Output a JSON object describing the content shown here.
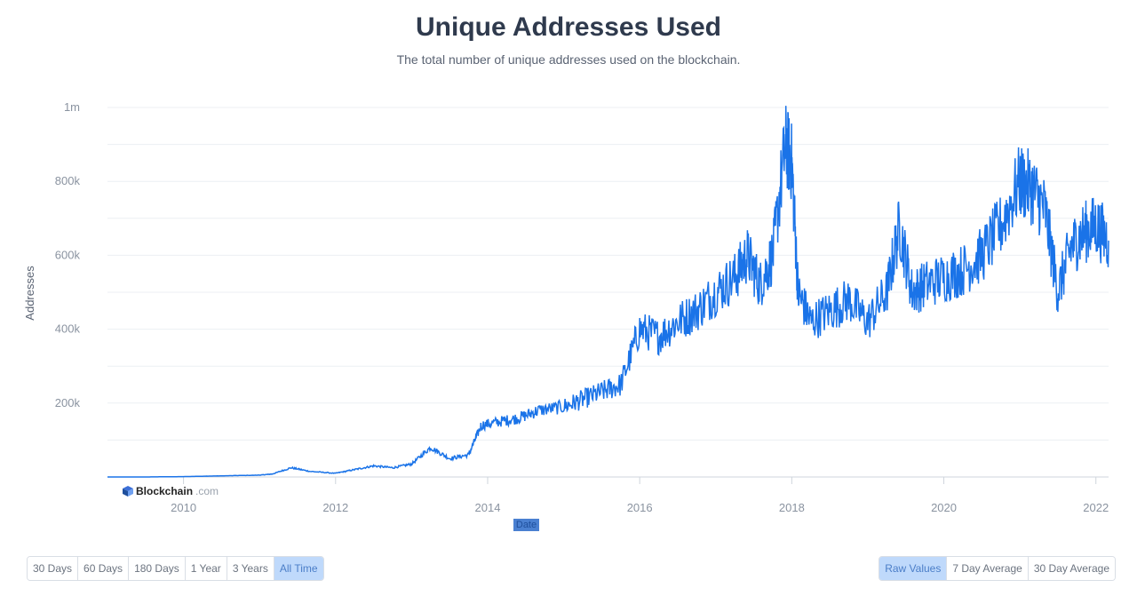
{
  "header": {
    "title": "Unique Addresses Used",
    "subtitle": "The total number of unique addresses used on the blockchain."
  },
  "brand": {
    "name": "Blockchain",
    "suffix": ".com"
  },
  "x_axis_title": "Date",
  "range_buttons": [
    {
      "label": "30 Days",
      "active": false
    },
    {
      "label": "60 Days",
      "active": false
    },
    {
      "label": "180 Days",
      "active": false
    },
    {
      "label": "1 Year",
      "active": false
    },
    {
      "label": "3 Years",
      "active": false
    },
    {
      "label": "All Time",
      "active": true
    }
  ],
  "mode_buttons": [
    {
      "label": "Raw Values",
      "active": true
    },
    {
      "label": "7 Day Average",
      "active": false
    },
    {
      "label": "30 Day Average",
      "active": false
    }
  ],
  "colors": {
    "line": "#1a73e8",
    "grid": "#eceff3",
    "axis_text": "#8a93a0",
    "active_btn": "#bfd9fb"
  },
  "chart_data": {
    "type": "line",
    "title": "Unique Addresses Used",
    "subtitle": "The total number of unique addresses used on the blockchain.",
    "xlabel": "Date",
    "ylabel": "Addresses",
    "x_ticks": [
      "2010",
      "2012",
      "2014",
      "2016",
      "2018",
      "2020",
      "2022"
    ],
    "y_ticks": [
      "200k",
      "400k",
      "600k",
      "800k",
      "1m"
    ],
    "y_tick_values": [
      200000,
      400000,
      600000,
      800000,
      1000000
    ],
    "xlim": [
      "2009-01",
      "2022-03"
    ],
    "ylim": [
      0,
      1000000
    ],
    "grid": true,
    "series": [
      {
        "x": [
          "2009-01",
          "2009-07",
          "2010-01",
          "2010-07",
          "2011-01",
          "2011-03",
          "2011-06",
          "2011-09",
          "2012-01",
          "2012-04",
          "2012-07",
          "2012-10",
          "2013-01",
          "2013-04",
          "2013-07",
          "2013-10",
          "2013-12",
          "2014-03",
          "2014-06",
          "2014-09",
          "2015-01",
          "2015-04",
          "2015-07",
          "2015-10",
          "2016-01",
          "2016-04",
          "2016-07",
          "2016-10",
          "2017-01",
          "2017-04",
          "2017-06",
          "2017-08",
          "2017-10",
          "2017-12",
          "2018-01",
          "2018-02",
          "2018-04",
          "2018-07",
          "2018-10",
          "2019-01",
          "2019-04",
          "2019-06",
          "2019-08",
          "2019-10",
          "2020-01",
          "2020-04",
          "2020-07",
          "2020-10",
          "2021-01",
          "2021-03",
          "2021-05",
          "2021-07",
          "2021-09",
          "2021-11",
          "2022-01",
          "2022-03"
        ],
        "y": [
          0,
          0,
          1000,
          3000,
          5000,
          8000,
          25000,
          15000,
          10000,
          20000,
          30000,
          25000,
          35000,
          80000,
          50000,
          60000,
          140000,
          150000,
          160000,
          180000,
          190000,
          210000,
          230000,
          250000,
          400000,
          380000,
          420000,
          450000,
          500000,
          540000,
          600000,
          520000,
          600000,
          900000,
          850000,
          500000,
          420000,
          450000,
          480000,
          420000,
          500000,
          680000,
          500000,
          520000,
          540000,
          560000,
          600000,
          680000,
          800000,
          780000,
          720000,
          500000,
          620000,
          660000,
          680000,
          640000
        ]
      }
    ]
  }
}
